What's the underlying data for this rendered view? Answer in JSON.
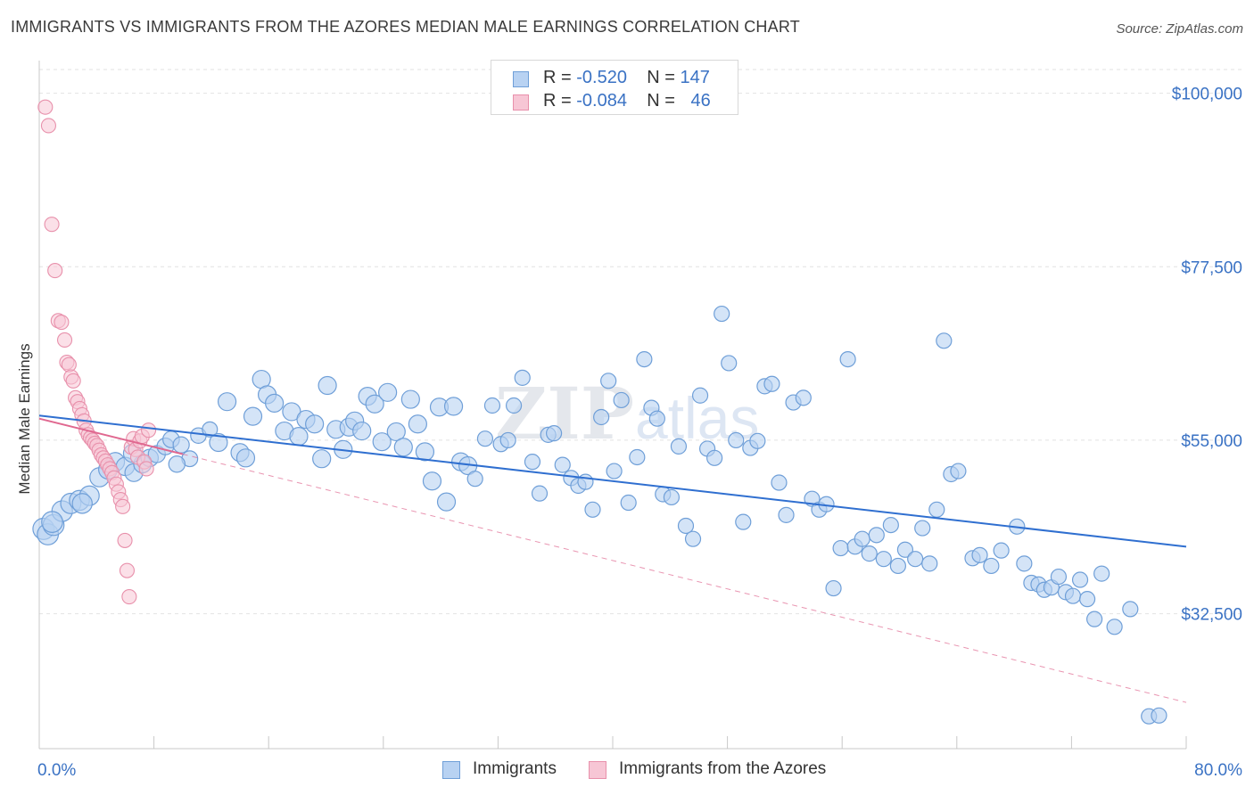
{
  "title": "IMMIGRANTS VS IMMIGRANTS FROM THE AZORES MEDIAN MALE EARNINGS CORRELATION CHART",
  "source": "Source: ZipAtlas.com",
  "watermark": "ZIPatlas",
  "legend_top": [
    {
      "r_label": "R =",
      "r_value": "-0.520",
      "n_label": "N =",
      "n_value": "147",
      "color": "#a8c8f0"
    },
    {
      "r_label": "R =",
      "r_value": "-0.084",
      "n_label": "N =",
      "n_value": "46",
      "color": "#f5b8cb"
    }
  ],
  "colors": {
    "blue_fill": "#b8d2f2",
    "blue_stroke": "#6f9fd8",
    "blue_line": "#2f6fd0",
    "pink_fill": "#f7c6d5",
    "pink_stroke": "#e890ab",
    "pink_line": "#e06890",
    "tick_text": "#3a72c4",
    "grid": "#e2e2e2"
  },
  "chart_data": {
    "type": "scatter",
    "xlabel": "",
    "ylabel": "Median Male Earnings",
    "xlim": [
      0,
      80
    ],
    "ylim": [
      15000,
      104000
    ],
    "x_tick_labels": {
      "left": "0.0%",
      "right": "80.0%"
    },
    "y_ticks": [
      {
        "value": 100000,
        "label": "$100,000"
      },
      {
        "value": 77500,
        "label": "$77,500"
      },
      {
        "value": 55000,
        "label": "$55,000"
      },
      {
        "value": 32500,
        "label": "$32,500"
      }
    ],
    "series": [
      {
        "name": "Immigrants",
        "trend": {
          "x0": 0,
          "y0": 58200,
          "x1": 80,
          "y1": 41200
        },
        "points": [
          [
            0.3,
            43500
          ],
          [
            0.6,
            42800
          ],
          [
            1.0,
            44000
          ],
          [
            1.6,
            45800
          ],
          [
            2.2,
            46800
          ],
          [
            2.8,
            47200
          ],
          [
            3.5,
            47800
          ],
          [
            4.2,
            50200
          ],
          [
            4.8,
            51200
          ],
          [
            5.3,
            52200
          ],
          [
            6.0,
            51600
          ],
          [
            6.6,
            50800
          ],
          [
            7.2,
            51900
          ],
          [
            7.7,
            52700
          ],
          [
            8.2,
            53200
          ],
          [
            8.8,
            54200
          ],
          [
            9.2,
            55100
          ],
          [
            9.9,
            54400
          ],
          [
            10.5,
            52600
          ],
          [
            11.1,
            55600
          ],
          [
            11.9,
            56400
          ],
          [
            12.5,
            54700
          ],
          [
            13.1,
            60000
          ],
          [
            14.0,
            53400
          ],
          [
            14.4,
            52700
          ],
          [
            14.9,
            58100
          ],
          [
            15.5,
            62900
          ],
          [
            15.9,
            60900
          ],
          [
            16.4,
            59800
          ],
          [
            17.1,
            56200
          ],
          [
            17.6,
            58700
          ],
          [
            18.1,
            55500
          ],
          [
            18.6,
            57700
          ],
          [
            19.2,
            57100
          ],
          [
            19.7,
            52600
          ],
          [
            20.1,
            62100
          ],
          [
            20.7,
            56400
          ],
          [
            21.2,
            53800
          ],
          [
            21.6,
            56700
          ],
          [
            22.0,
            57500
          ],
          [
            22.5,
            56200
          ],
          [
            22.9,
            60700
          ],
          [
            23.4,
            59700
          ],
          [
            23.9,
            54800
          ],
          [
            24.3,
            61200
          ],
          [
            24.9,
            56100
          ],
          [
            25.4,
            54100
          ],
          [
            25.9,
            60300
          ],
          [
            26.4,
            57100
          ],
          [
            26.9,
            53500
          ],
          [
            27.4,
            49700
          ],
          [
            27.9,
            59300
          ],
          [
            28.4,
            47000
          ],
          [
            28.9,
            59400
          ],
          [
            29.4,
            52200
          ],
          [
            29.9,
            51700
          ],
          [
            30.4,
            50000
          ],
          [
            31.1,
            55200
          ],
          [
            31.6,
            59500
          ],
          [
            32.2,
            54500
          ],
          [
            32.7,
            55000
          ],
          [
            33.1,
            59500
          ],
          [
            33.7,
            63100
          ],
          [
            34.4,
            52200
          ],
          [
            34.9,
            48100
          ],
          [
            35.5,
            55700
          ],
          [
            35.9,
            55900
          ],
          [
            36.5,
            51800
          ],
          [
            37.1,
            50100
          ],
          [
            37.6,
            49100
          ],
          [
            38.1,
            49600
          ],
          [
            38.6,
            46000
          ],
          [
            39.2,
            58000
          ],
          [
            39.7,
            62700
          ],
          [
            40.1,
            51000
          ],
          [
            40.6,
            60200
          ],
          [
            41.1,
            46900
          ],
          [
            41.7,
            52800
          ],
          [
            42.2,
            65500
          ],
          [
            42.7,
            59200
          ],
          [
            43.1,
            57800
          ],
          [
            43.5,
            48000
          ],
          [
            44.1,
            47600
          ],
          [
            44.6,
            54200
          ],
          [
            45.1,
            43900
          ],
          [
            45.6,
            42200
          ],
          [
            46.1,
            60800
          ],
          [
            46.6,
            53900
          ],
          [
            47.1,
            52700
          ],
          [
            47.6,
            71400
          ],
          [
            48.1,
            65000
          ],
          [
            48.6,
            55000
          ],
          [
            49.1,
            44400
          ],
          [
            49.6,
            54000
          ],
          [
            50.1,
            54900
          ],
          [
            50.6,
            62000
          ],
          [
            51.1,
            62300
          ],
          [
            51.6,
            49500
          ],
          [
            52.1,
            45300
          ],
          [
            52.6,
            59900
          ],
          [
            53.3,
            60500
          ],
          [
            53.9,
            47400
          ],
          [
            54.4,
            46000
          ],
          [
            54.9,
            46700
          ],
          [
            55.4,
            35800
          ],
          [
            55.9,
            41000
          ],
          [
            56.4,
            65500
          ],
          [
            56.9,
            41200
          ],
          [
            57.4,
            42200
          ],
          [
            57.9,
            40300
          ],
          [
            58.4,
            42700
          ],
          [
            58.9,
            39600
          ],
          [
            59.4,
            44000
          ],
          [
            59.9,
            38700
          ],
          [
            60.4,
            40800
          ],
          [
            61.1,
            39600
          ],
          [
            61.6,
            43600
          ],
          [
            62.1,
            39000
          ],
          [
            62.6,
            46000
          ],
          [
            63.1,
            67900
          ],
          [
            63.6,
            50600
          ],
          [
            64.1,
            51000
          ],
          [
            65.1,
            39700
          ],
          [
            65.6,
            40100
          ],
          [
            66.4,
            38700
          ],
          [
            67.1,
            40700
          ],
          [
            68.2,
            43800
          ],
          [
            68.7,
            39000
          ],
          [
            69.2,
            36500
          ],
          [
            69.7,
            36300
          ],
          [
            70.1,
            35600
          ],
          [
            70.6,
            35900
          ],
          [
            71.1,
            37300
          ],
          [
            71.6,
            35300
          ],
          [
            72.1,
            34800
          ],
          [
            72.6,
            36900
          ],
          [
            73.1,
            34400
          ],
          [
            73.6,
            31800
          ],
          [
            74.1,
            37700
          ],
          [
            75.0,
            30800
          ],
          [
            76.1,
            33100
          ],
          [
            77.4,
            19200
          ],
          [
            78.1,
            19300
          ],
          [
            0.9,
            44400
          ],
          [
            3.0,
            46800
          ],
          [
            6.5,
            53300
          ],
          [
            9.6,
            51900
          ]
        ]
      },
      {
        "name": "Immigrants from the Azores",
        "trend_solid": {
          "x0": 0,
          "y0": 57800,
          "x1": 10,
          "y1": 53200
        },
        "trend_dashed": {
          "x0": 10,
          "y0": 53200,
          "x1": 80,
          "y1": 21000
        },
        "points": [
          [
            0.3,
            98200
          ],
          [
            0.6,
            95800
          ],
          [
            0.9,
            83000
          ],
          [
            1.2,
            77000
          ],
          [
            1.5,
            70500
          ],
          [
            1.8,
            70300
          ],
          [
            2.1,
            68000
          ],
          [
            2.3,
            65100
          ],
          [
            2.5,
            64800
          ],
          [
            2.7,
            63200
          ],
          [
            2.9,
            62700
          ],
          [
            3.1,
            60500
          ],
          [
            3.3,
            60000
          ],
          [
            3.5,
            59100
          ],
          [
            3.7,
            58300
          ],
          [
            3.9,
            57500
          ],
          [
            4.1,
            56300
          ],
          [
            4.3,
            55700
          ],
          [
            4.5,
            55300
          ],
          [
            4.7,
            55000
          ],
          [
            4.9,
            54600
          ],
          [
            5.1,
            54300
          ],
          [
            5.3,
            53700
          ],
          [
            5.5,
            53100
          ],
          [
            5.7,
            52700
          ],
          [
            5.9,
            52300
          ],
          [
            6.1,
            51800
          ],
          [
            6.3,
            51300
          ],
          [
            6.5,
            50800
          ],
          [
            6.7,
            50100
          ],
          [
            6.9,
            49300
          ],
          [
            7.1,
            48300
          ],
          [
            7.3,
            47300
          ],
          [
            7.5,
            46400
          ],
          [
            7.7,
            42000
          ],
          [
            7.9,
            38100
          ],
          [
            8.1,
            34700
          ],
          [
            8.3,
            54100
          ],
          [
            8.5,
            55200
          ],
          [
            8.7,
            53800
          ],
          [
            8.9,
            52800
          ],
          [
            9.1,
            54900
          ],
          [
            9.3,
            55500
          ],
          [
            9.5,
            52200
          ],
          [
            9.7,
            51300
          ],
          [
            9.9,
            56300
          ]
        ]
      }
    ]
  },
  "legend_bottom": [
    {
      "label": "Immigrants"
    },
    {
      "label": "Immigrants from the Azores"
    }
  ]
}
